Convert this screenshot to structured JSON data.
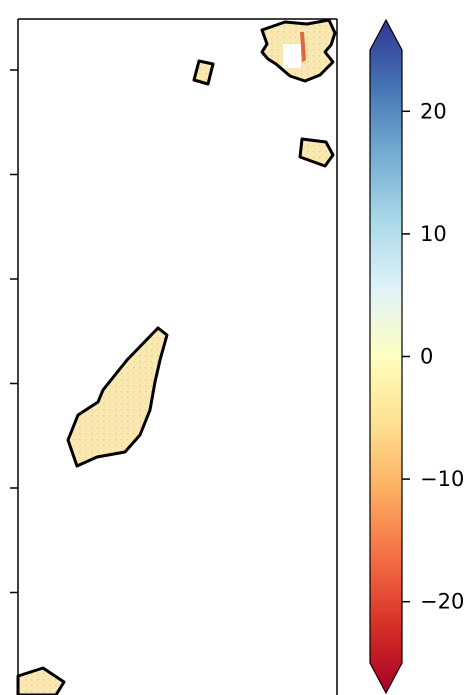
{
  "colorbar": {
    "ticks": [
      {
        "value": 20,
        "label": "20"
      },
      {
        "value": 10,
        "label": "10"
      },
      {
        "value": 0,
        "label": "0"
      },
      {
        "value": -10,
        "label": "−10"
      },
      {
        "value": -20,
        "label": "−20"
      }
    ],
    "range": [
      -25,
      25
    ],
    "extend": "both",
    "colormap": "RdYlBu",
    "colormap_stops": [
      "#a50026",
      "#d73027",
      "#f46d43",
      "#fdae61",
      "#fee090",
      "#ffffbf",
      "#e0f3f8",
      "#abd9e9",
      "#74add1",
      "#4575b4",
      "#313695"
    ]
  },
  "map": {
    "region_fill": "#fbe7a8",
    "region_outline": "#000000",
    "region_count": 6,
    "left_axis_ticks": 6
  }
}
